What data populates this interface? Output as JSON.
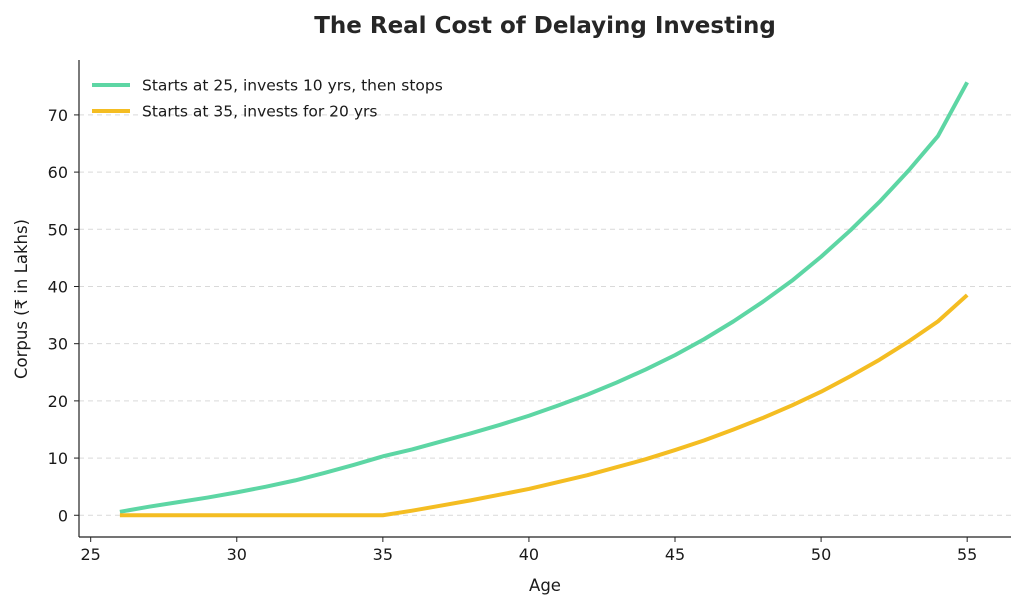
{
  "chart_data": {
    "type": "line",
    "title": "The Real Cost of Delaying Investing",
    "xlabel": "Age",
    "ylabel": "Corpus (₹ in Lakhs)",
    "xlim": [
      24.6,
      56.5
    ],
    "ylim": [
      -3.8,
      79.6
    ],
    "xticks": [
      25,
      30,
      35,
      40,
      45,
      50,
      55
    ],
    "yticks": [
      0,
      10,
      20,
      30,
      40,
      50,
      60,
      70
    ],
    "grid": "horizontal dashed",
    "legend_position": "top-left",
    "series": [
      {
        "name": "Starts at 25, invests 10 yrs, then stops",
        "color": "#5dd6a4",
        "x": [
          26,
          27,
          28,
          29,
          30,
          31,
          32,
          33,
          34,
          35,
          36,
          37,
          38,
          39,
          40,
          41,
          42,
          43,
          44,
          45,
          46,
          47,
          48,
          49,
          50,
          51,
          52,
          53,
          54,
          55
        ],
        "y": [
          0.6,
          1.5,
          2.3,
          3.1,
          4.0,
          5.0,
          6.1,
          7.4,
          8.8,
          10.3,
          11.5,
          12.9,
          14.3,
          15.8,
          17.4,
          19.2,
          21.1,
          23.2,
          25.5,
          28.0,
          30.8,
          33.9,
          37.3,
          41.0,
          45.2,
          49.8,
          54.8,
          60.3,
          66.3,
          75.7
        ]
      },
      {
        "name": "Starts at 35, invests for 20 yrs",
        "color": "#f4bd22",
        "x": [
          26,
          27,
          28,
          29,
          30,
          31,
          32,
          33,
          34,
          35,
          36,
          37,
          38,
          39,
          40,
          41,
          42,
          43,
          44,
          45,
          46,
          47,
          48,
          49,
          50,
          51,
          52,
          53,
          54,
          55
        ],
        "y": [
          0,
          0,
          0,
          0,
          0,
          0,
          0,
          0,
          0,
          0,
          0.8,
          1.7,
          2.6,
          3.6,
          4.6,
          5.8,
          7.0,
          8.4,
          9.8,
          11.4,
          13.1,
          15.0,
          17.0,
          19.2,
          21.6,
          24.3,
          27.2,
          30.4,
          33.9,
          38.5
        ]
      }
    ]
  }
}
